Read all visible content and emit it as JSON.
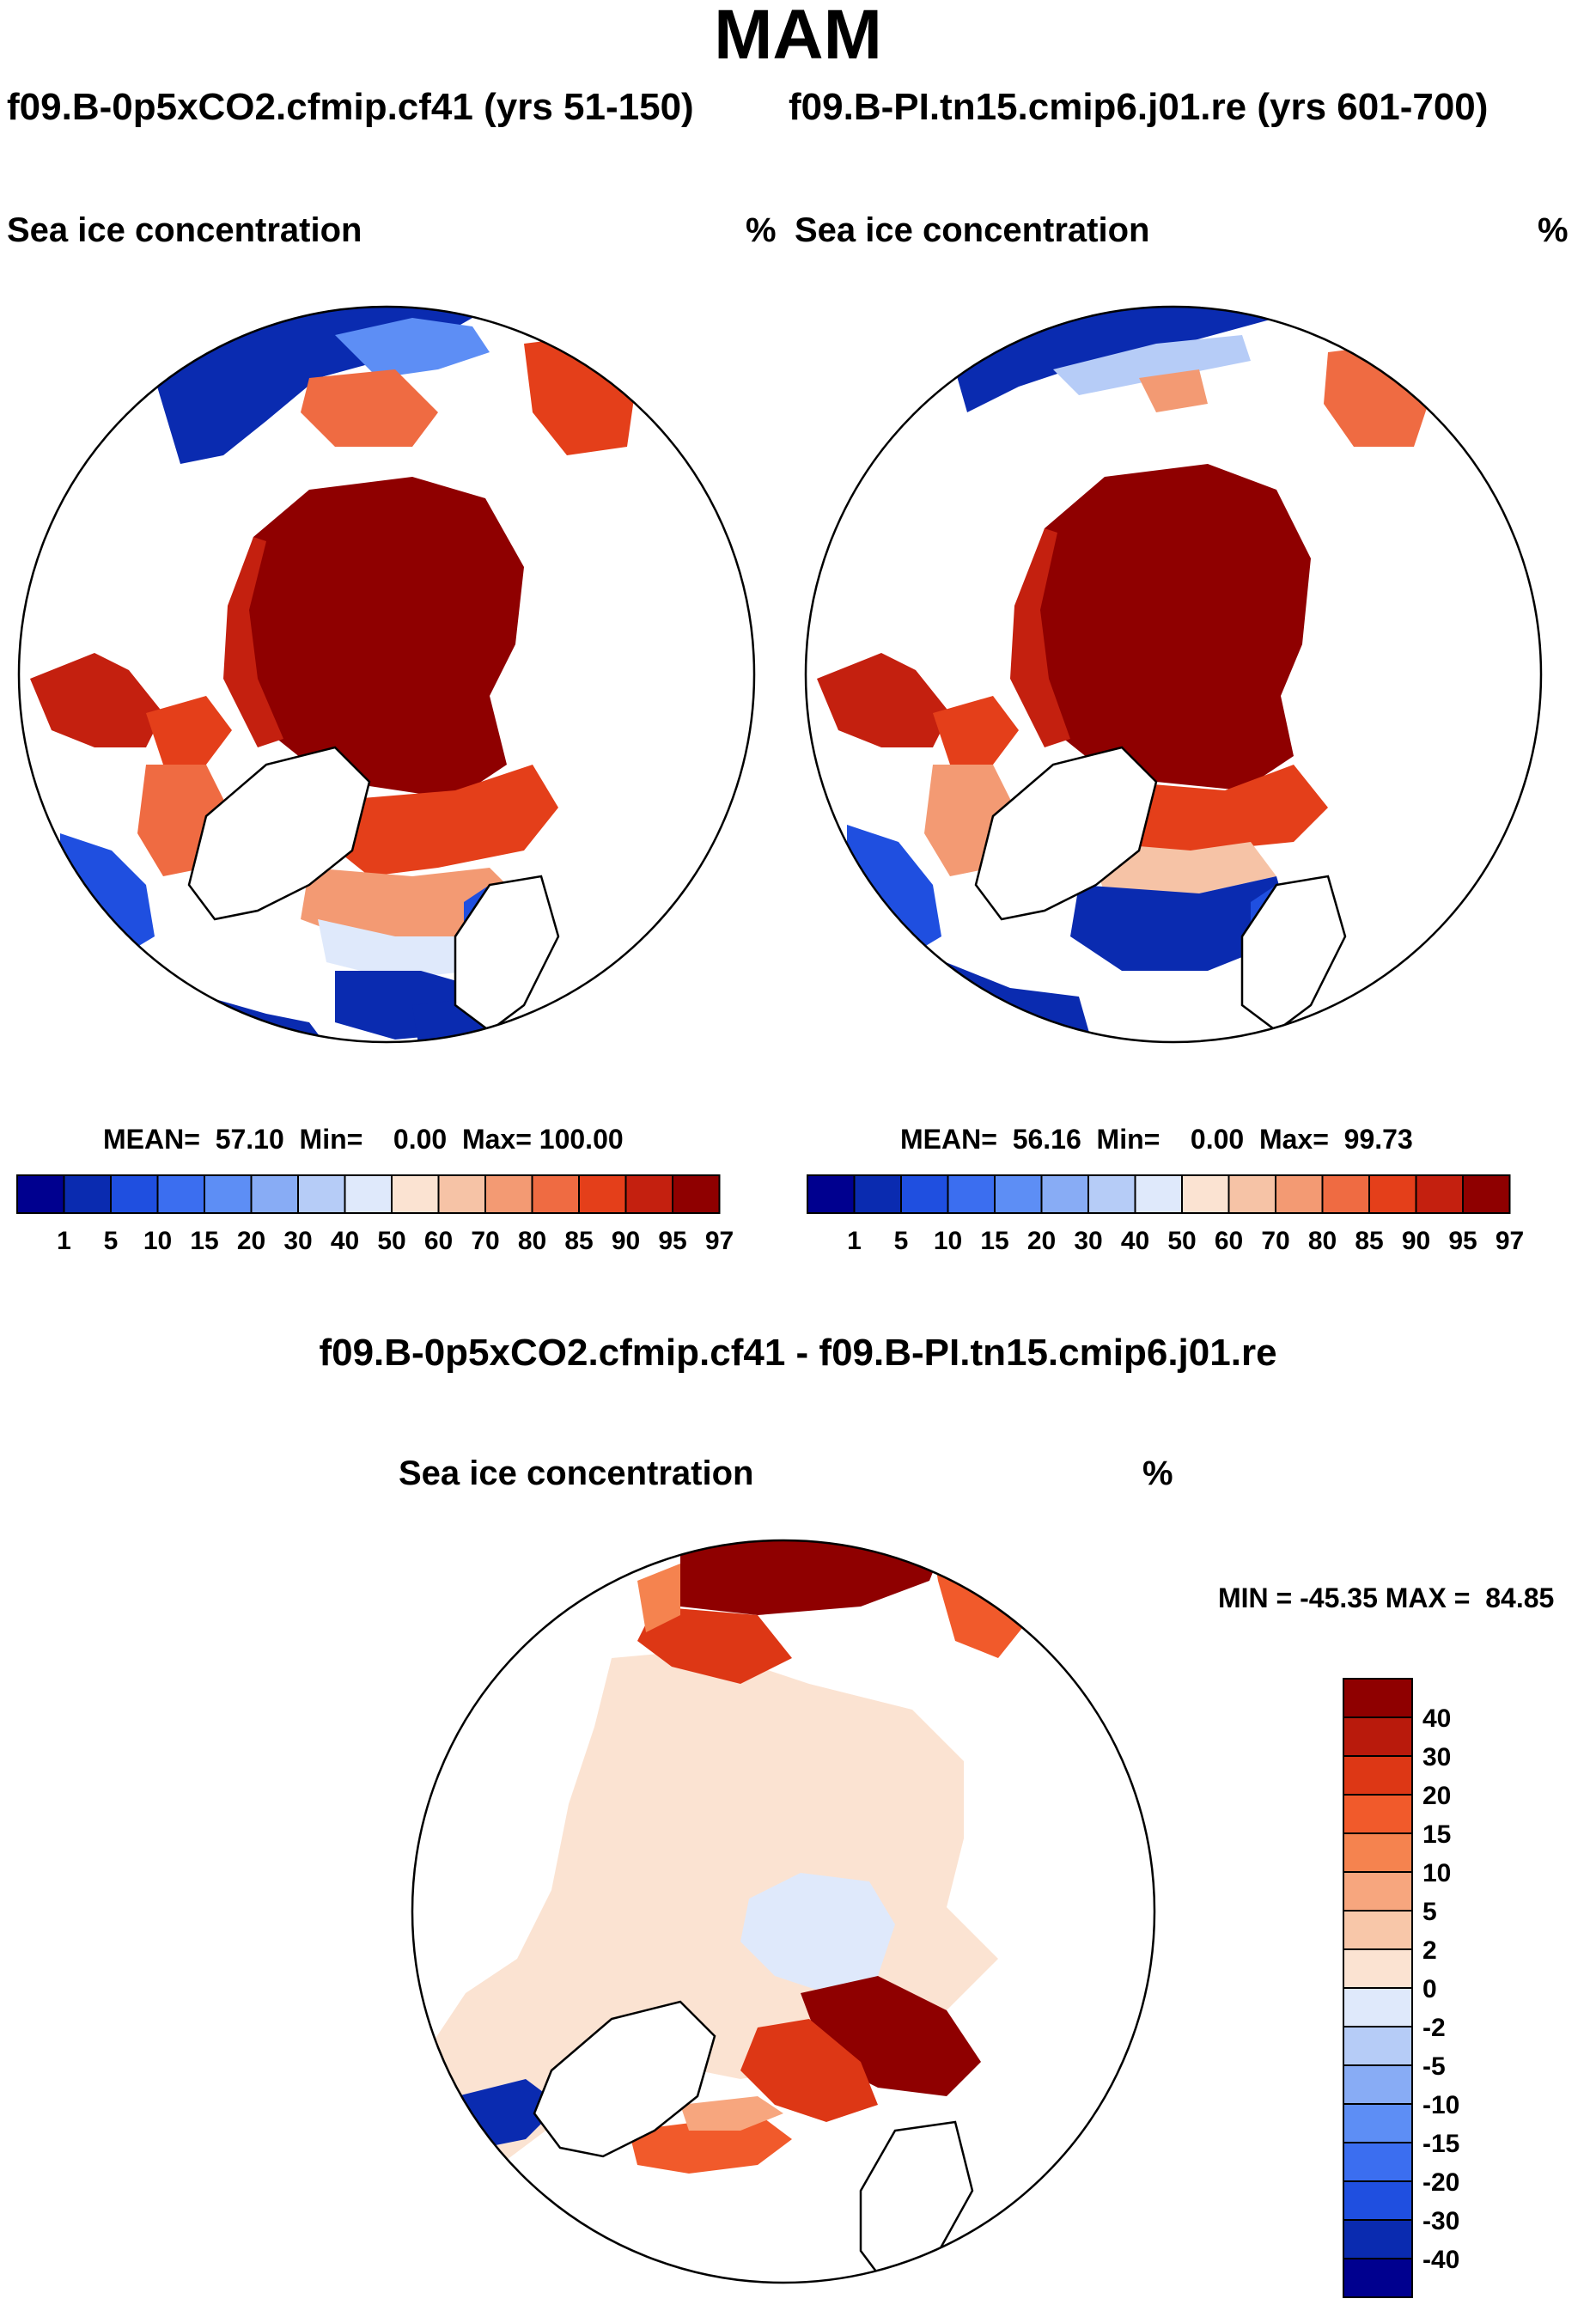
{
  "title": "MAM",
  "runs": {
    "left": "f09.B-0p5xCO2.cfmip.cf41 (yrs 51-150)",
    "right": "f09.B-PI.tn15.cmip6.j01.re (yrs 601-700)"
  },
  "panels": {
    "left": {
      "variable": "Sea ice concentration",
      "units": "%",
      "stats": "MEAN=  57.10  Min=    0.00  Max= 100.00"
    },
    "right": {
      "variable": "Sea ice concentration",
      "units": "%",
      "stats": "MEAN=  56.16  Min=    0.00  Max=  99.73"
    },
    "diff": {
      "title": "f09.B-0p5xCO2.cfmip.cf41 - f09.B-PI.tn15.cmip6.j01.re",
      "variable": "Sea ice concentration",
      "units": "%",
      "minmax": "MIN = -45.35 MAX =  84.85"
    }
  },
  "colorbar_main": {
    "labels": [
      "1",
      "5",
      "10",
      "15",
      "20",
      "30",
      "40",
      "50",
      "60",
      "70",
      "80",
      "85",
      "90",
      "95",
      "97"
    ],
    "colors": [
      "#00008f",
      "#0a2bb0",
      "#1f4fe0",
      "#3b6ef0",
      "#5d8ef5",
      "#88acf5",
      "#b6ccf7",
      "#dfe9fb",
      "#fbe3d2",
      "#f6c3a6",
      "#f39a73",
      "#ef6b42",
      "#e43f1a",
      "#c4200f",
      "#8f0000"
    ]
  },
  "colorbar_diff": {
    "labels": [
      "40",
      "30",
      "20",
      "15",
      "10",
      "5",
      "2",
      "0",
      "-2",
      "-5",
      "-10",
      "-15",
      "-20",
      "-30",
      "-40"
    ],
    "colors": [
      "#8f0000",
      "#b91a0c",
      "#dd3715",
      "#f15a2b",
      "#f5834f",
      "#f7a67e",
      "#f8c7a9",
      "#fbe3d2",
      "#dfe9fb",
      "#b6ccf7",
      "#88acf5",
      "#5d8ef5",
      "#3b6ef0",
      "#1f4fe0",
      "#0a2bb0",
      "#00008f"
    ]
  }
}
